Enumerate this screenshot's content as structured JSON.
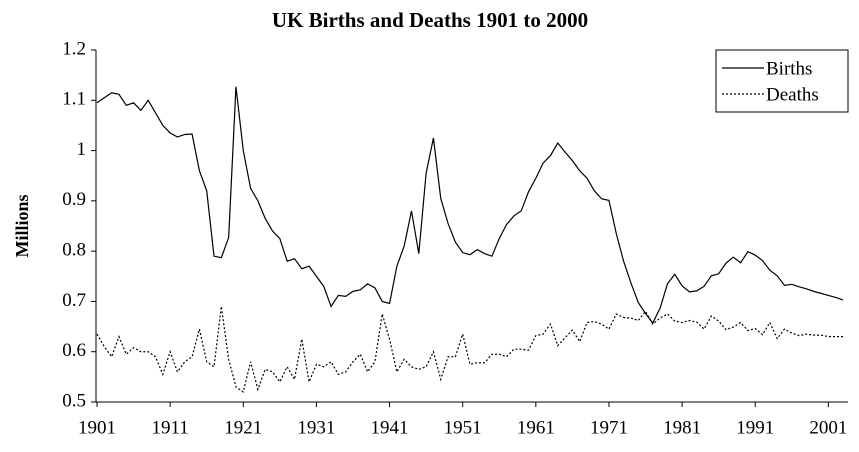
{
  "chart_data": {
    "type": "line",
    "title": "UK Births and Deaths 1901 to 2000",
    "y_label": "Millions",
    "x": [
      1901,
      1902,
      1903,
      1904,
      1905,
      1906,
      1907,
      1908,
      1909,
      1910,
      1911,
      1912,
      1913,
      1914,
      1915,
      1916,
      1917,
      1918,
      1919,
      1920,
      1921,
      1922,
      1923,
      1924,
      1925,
      1926,
      1927,
      1928,
      1929,
      1930,
      1931,
      1932,
      1933,
      1934,
      1935,
      1936,
      1937,
      1938,
      1939,
      1940,
      1941,
      1942,
      1943,
      1944,
      1945,
      1946,
      1947,
      1948,
      1949,
      1950,
      1951,
      1952,
      1953,
      1954,
      1955,
      1956,
      1957,
      1958,
      1959,
      1960,
      1961,
      1962,
      1963,
      1964,
      1965,
      1966,
      1967,
      1968,
      1969,
      1970,
      1971,
      1972,
      1973,
      1974,
      1975,
      1976,
      1977,
      1978,
      1979,
      1980,
      1981,
      1982,
      1983,
      1984,
      1985,
      1986,
      1987,
      1988,
      1989,
      1990,
      1991,
      1992,
      1993,
      1994,
      1995,
      1996,
      1997,
      1998,
      1999,
      2000,
      2001,
      2002,
      2003
    ],
    "series": [
      {
        "name": "Births",
        "color": "#000000",
        "style": "solid",
        "values": [
          1.095,
          1.105,
          1.115,
          1.112,
          1.09,
          1.095,
          1.08,
          1.1,
          1.075,
          1.05,
          1.035,
          1.027,
          1.032,
          1.033,
          0.96,
          0.92,
          0.79,
          0.787,
          0.827,
          1.127,
          1.0,
          0.925,
          0.9,
          0.865,
          0.84,
          0.825,
          0.78,
          0.785,
          0.765,
          0.77,
          0.75,
          0.73,
          0.69,
          0.712,
          0.71,
          0.72,
          0.723,
          0.735,
          0.727,
          0.7,
          0.696,
          0.77,
          0.81,
          0.88,
          0.795,
          0.955,
          1.025,
          0.905,
          0.855,
          0.818,
          0.797,
          0.793,
          0.803,
          0.795,
          0.79,
          0.825,
          0.853,
          0.87,
          0.88,
          0.918,
          0.945,
          0.975,
          0.99,
          1.015,
          0.997,
          0.98,
          0.96,
          0.945,
          0.92,
          0.904,
          0.901,
          0.835,
          0.78,
          0.737,
          0.698,
          0.676,
          0.657,
          0.687,
          0.735,
          0.754,
          0.731,
          0.719,
          0.721,
          0.73,
          0.751,
          0.755,
          0.776,
          0.788,
          0.777,
          0.799,
          0.792,
          0.781,
          0.762,
          0.751,
          0.732,
          0.734,
          0.729,
          0.725,
          0.72,
          0.716,
          0.712,
          0.708,
          0.703
        ]
      },
      {
        "name": "Deaths",
        "color": "#000000",
        "style": "dotted",
        "values": [
          0.635,
          0.61,
          0.59,
          0.63,
          0.595,
          0.608,
          0.6,
          0.6,
          0.59,
          0.555,
          0.6,
          0.56,
          0.58,
          0.59,
          0.645,
          0.58,
          0.57,
          0.69,
          0.585,
          0.53,
          0.52,
          0.58,
          0.525,
          0.565,
          0.56,
          0.54,
          0.57,
          0.545,
          0.625,
          0.54,
          0.575,
          0.57,
          0.58,
          0.555,
          0.56,
          0.58,
          0.595,
          0.56,
          0.58,
          0.675,
          0.625,
          0.56,
          0.585,
          0.57,
          0.565,
          0.57,
          0.6,
          0.545,
          0.59,
          0.59,
          0.635,
          0.575,
          0.578,
          0.578,
          0.595,
          0.595,
          0.59,
          0.605,
          0.605,
          0.603,
          0.632,
          0.635,
          0.655,
          0.612,
          0.628,
          0.643,
          0.62,
          0.658,
          0.66,
          0.655,
          0.645,
          0.675,
          0.668,
          0.667,
          0.662,
          0.68,
          0.655,
          0.667,
          0.675,
          0.661,
          0.658,
          0.662,
          0.659,
          0.645,
          0.671,
          0.661,
          0.644,
          0.649,
          0.658,
          0.642,
          0.646,
          0.634,
          0.658,
          0.626,
          0.645,
          0.637,
          0.632,
          0.635,
          0.633,
          0.633,
          0.63,
          0.63,
          0.63
        ]
      }
    ],
    "xlim": [
      1901,
      2003
    ],
    "xticks": [
      1901,
      1911,
      1921,
      1931,
      1941,
      1951,
      1961,
      1971,
      1981,
      1991,
      2001
    ],
    "ylim": [
      0.5,
      1.2
    ],
    "yticks": [
      0.5,
      0.6,
      0.7,
      0.8,
      0.9,
      1,
      1.1,
      1.2
    ],
    "grid": false,
    "legend": "top-right"
  }
}
